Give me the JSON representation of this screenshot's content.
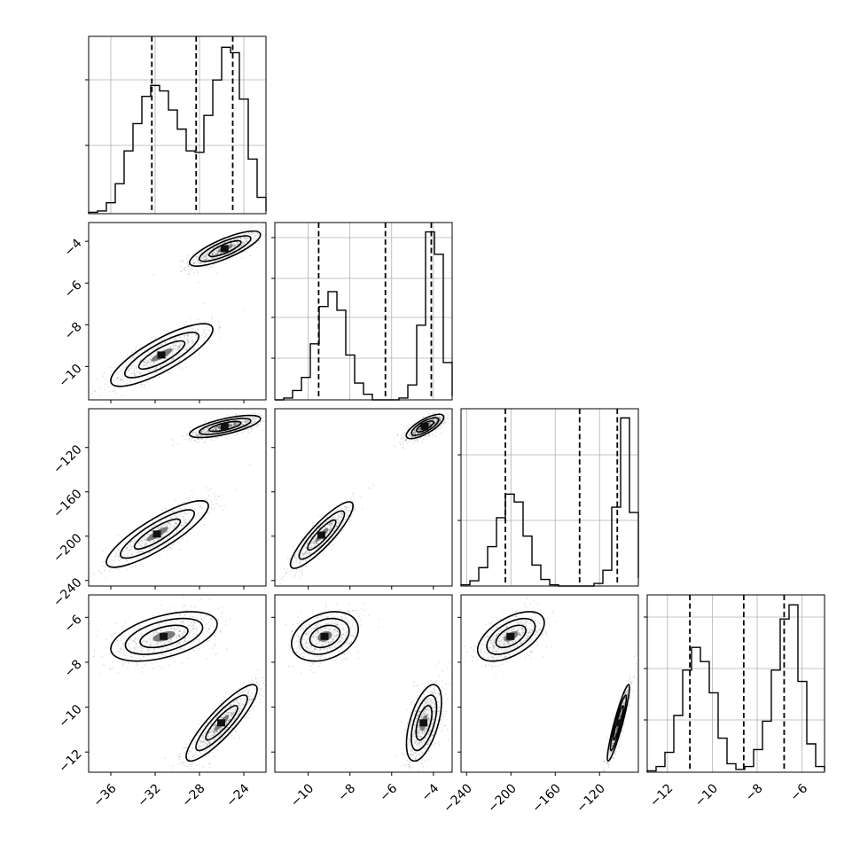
{
  "chart_data": {
    "type": "corner",
    "grid": true,
    "parameters": [
      {
        "index": 0,
        "range": [
          -38,
          -22
        ],
        "ticks": [
          -36,
          -32,
          -28,
          -24
        ],
        "tick_labels": [
          "−36",
          "−32",
          "−28",
          "−24"
        ],
        "quantiles": [
          -32.3,
          -28.3,
          -25.0
        ]
      },
      {
        "index": 1,
        "range": [
          -11.6,
          -3.1
        ],
        "ticks": [
          -10,
          -8,
          -6,
          -4
        ],
        "tick_labels": [
          "−10",
          "−8",
          "−6",
          "−4"
        ],
        "quantiles": [
          -9.5,
          -6.3,
          -4.1
        ]
      },
      {
        "index": 2,
        "range": [
          -245,
          -85
        ],
        "ticks": [
          -240,
          -200,
          -160,
          -120
        ],
        "tick_labels": [
          "−240",
          "−200",
          "−160",
          "−120"
        ],
        "quantiles": [
          -205,
          -138,
          -104
        ]
      },
      {
        "index": 3,
        "range": [
          -12.9,
          -5.0
        ],
        "ticks": [
          -12,
          -10,
          -8,
          -6
        ],
        "tick_labels": [
          "−12",
          "−10",
          "−8",
          "−6"
        ],
        "quantiles": [
          -11.0,
          -8.6,
          -6.8
        ]
      }
    ],
    "histograms": [
      {
        "param": 0,
        "bins": [
          -38,
          -37.2,
          -36.4,
          -35.6,
          -34.8,
          -34.0,
          -33.2,
          -32.4,
          -31.6,
          -30.8,
          -30.0,
          -29.2,
          -28.4,
          -27.6,
          -26.8,
          -26.0,
          -25.2,
          -24.4,
          -23.6,
          -22.8,
          -22.0
        ],
        "counts": [
          1,
          2,
          8,
          22,
          46,
          66,
          86,
          94,
          90,
          76,
          62,
          46,
          45,
          72,
          98,
          122,
          118,
          84,
          40,
          12,
          2
        ],
        "count_max": 130
      },
      {
        "param": 1,
        "bins": [
          -11.6,
          -11.175,
          -10.75,
          -10.325,
          -9.9,
          -9.475,
          -9.05,
          -8.625,
          -8.2,
          -7.775,
          -7.35,
          -6.925,
          -6.5,
          -6.075,
          -5.65,
          -5.225,
          -4.8,
          -4.375,
          -3.95,
          -3.525,
          -3.1
        ],
        "counts": [
          0,
          1,
          5,
          12,
          30,
          50,
          58,
          48,
          24,
          9,
          3,
          0,
          0,
          0,
          1,
          8,
          40,
          90,
          78,
          20,
          2
        ],
        "count_max": 95
      },
      {
        "param": 2,
        "bins": [
          -245,
          -237,
          -229,
          -221,
          -213,
          -205,
          -197,
          -189,
          -181,
          -173,
          -165,
          -157,
          -149,
          -141,
          -133,
          -125,
          -117,
          -109,
          -101,
          -93,
          -85
        ],
        "counts": [
          1,
          4,
          14,
          30,
          52,
          70,
          64,
          38,
          16,
          5,
          1,
          0,
          0,
          0,
          0,
          2,
          12,
          60,
          128,
          56,
          6
        ],
        "count_max": 135
      },
      {
        "param": 3,
        "bins": [
          -12.9,
          -12.505,
          -12.11,
          -11.715,
          -11.32,
          -10.925,
          -10.53,
          -10.135,
          -9.74,
          -9.345,
          -8.95,
          -8.555,
          -8.16,
          -7.765,
          -7.37,
          -6.975,
          -6.58,
          -6.185,
          -5.79,
          -5.395,
          -5.0
        ],
        "counts": [
          1,
          4,
          14,
          40,
          72,
          88,
          78,
          56,
          24,
          6,
          2,
          4,
          16,
          36,
          72,
          108,
          118,
          64,
          20,
          4,
          1
        ],
        "count_max": 125
      }
    ],
    "scatter_panels": [
      {
        "x": 0,
        "y": 1,
        "modes": [
          {
            "center": [
              -25.7,
              -4.35
            ],
            "spread": [
              1.6,
              0.42
            ],
            "corr": 0.8,
            "weight": 0.55
          },
          {
            "center": [
              -31.4,
              -9.45
            ],
            "spread": [
              2.3,
              0.75
            ],
            "corr": 0.82,
            "weight": 0.45
          }
        ]
      },
      {
        "x": 0,
        "y": 2,
        "modes": [
          {
            "center": [
              -25.7,
              -101
            ],
            "spread": [
              1.6,
              5
            ],
            "corr": 0.7,
            "weight": 0.55
          },
          {
            "center": [
              -31.8,
              -198
            ],
            "spread": [
              2.3,
              15
            ],
            "corr": 0.85,
            "weight": 0.45
          }
        ]
      },
      {
        "x": 1,
        "y": 2,
        "modes": [
          {
            "center": [
              -4.4,
              -101
            ],
            "spread": [
              0.45,
              5.5
            ],
            "corr": 0.75,
            "weight": 0.55
          },
          {
            "center": [
              -9.35,
              -199
            ],
            "spread": [
              0.75,
              15
            ],
            "corr": 0.88,
            "weight": 0.45
          }
        ]
      },
      {
        "x": 0,
        "y": 3,
        "modes": [
          {
            "center": [
              -31.2,
              -6.85
            ],
            "spread": [
              2.4,
              0.55
            ],
            "corr": 0.5,
            "weight": 0.45
          },
          {
            "center": [
              -26.0,
              -10.7
            ],
            "spread": [
              1.6,
              0.85
            ],
            "corr": 0.88,
            "weight": 0.55
          }
        ]
      },
      {
        "x": 1,
        "y": 3,
        "modes": [
          {
            "center": [
              -9.2,
              -6.85
            ],
            "spread": [
              0.8,
              0.55
            ],
            "corr": 0.3,
            "weight": 0.45
          },
          {
            "center": [
              -4.45,
              -10.7
            ],
            "spread": [
              0.42,
              0.85
            ],
            "corr": 0.55,
            "weight": 0.55
          }
        ]
      },
      {
        "x": 2,
        "y": 3,
        "modes": [
          {
            "center": [
              -200,
              -6.85
            ],
            "spread": [
              15,
              0.55
            ],
            "corr": 0.55,
            "weight": 0.45
          },
          {
            "center": [
              -103,
              -10.7
            ],
            "spread": [
              5,
              0.85
            ],
            "corr": 0.92,
            "weight": 0.55
          }
        ]
      }
    ]
  }
}
